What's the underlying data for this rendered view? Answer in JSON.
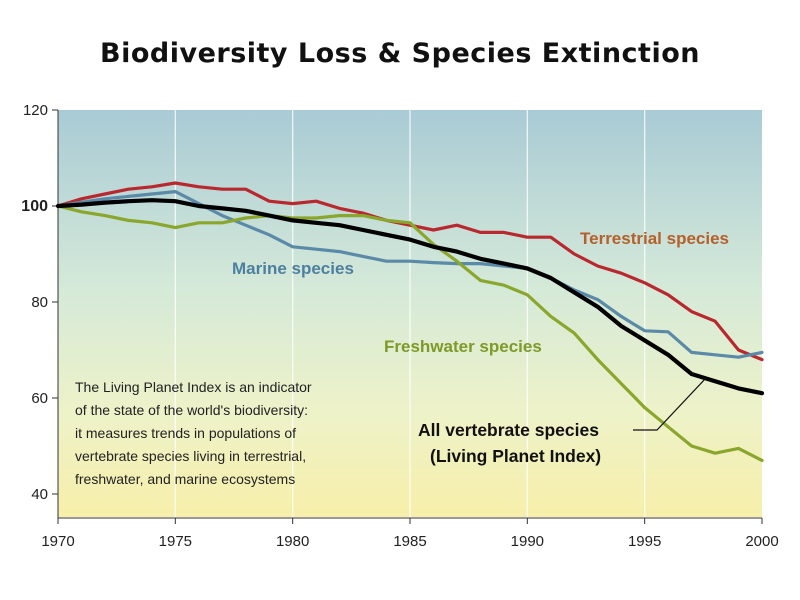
{
  "chart_data": {
    "type": "line",
    "title": "Biodiversity Loss & Species Extinction",
    "xlabel": "",
    "ylabel": "",
    "xlim": [
      1970,
      2000
    ],
    "ylim": [
      35,
      120
    ],
    "x_ticks": [
      "1970",
      "1975",
      "1980",
      "1985",
      "1990",
      "1995",
      "2000"
    ],
    "y_ticks": [
      "120",
      "100",
      "80",
      "60",
      "40"
    ],
    "grid": true,
    "series": [
      {
        "name": "Terrestrial species",
        "label": "Terrestrial species",
        "color": "#b8282e",
        "label_color": "#b5602a",
        "x": [
          1970,
          1971,
          1972,
          1973,
          1974,
          1975,
          1976,
          1977,
          1978,
          1979,
          1980,
          1981,
          1982,
          1983,
          1984,
          1985,
          1986,
          1987,
          1988,
          1989,
          1990,
          1991,
          1992,
          1993,
          1994,
          1995,
          1996,
          1997,
          1998,
          1999,
          2000
        ],
        "values": [
          100,
          101.5,
          102.5,
          103.5,
          104,
          104.8,
          104,
          103.5,
          103.5,
          101,
          100.5,
          101,
          99.5,
          98.5,
          97,
          96,
          95,
          96,
          94.5,
          94.5,
          93.5,
          93.5,
          90,
          87.5,
          86,
          84,
          81.5,
          78,
          76,
          70,
          68
        ]
      },
      {
        "name": "Marine species",
        "label": "Marine species",
        "color": "#5a8aa8",
        "label_color": "#4d7f9f",
        "x": [
          1970,
          1971,
          1972,
          1973,
          1974,
          1975,
          1976,
          1977,
          1978,
          1979,
          1980,
          1981,
          1982,
          1983,
          1984,
          1985,
          1986,
          1987,
          1988,
          1989,
          1990,
          1991,
          1992,
          1993,
          1994,
          1995,
          1996,
          1997,
          1998,
          1999,
          2000
        ],
        "values": [
          100,
          100.8,
          101.5,
          102,
          102.5,
          103,
          100.5,
          98,
          96,
          94,
          91.5,
          91,
          90.5,
          89.5,
          88.5,
          88.5,
          88.2,
          88,
          88,
          87.5,
          87,
          85,
          82.5,
          80.5,
          77,
          74,
          73.8,
          69.5,
          69,
          68.5,
          69.5
        ]
      },
      {
        "name": "Freshwater species",
        "label": "Freshwater species",
        "color": "#8aa62c",
        "label_color": "#7f9a28",
        "x": [
          1970,
          1971,
          1972,
          1973,
          1974,
          1975,
          1976,
          1977,
          1978,
          1979,
          1980,
          1981,
          1982,
          1983,
          1984,
          1985,
          1986,
          1987,
          1988,
          1989,
          1990,
          1991,
          1992,
          1993,
          1994,
          1995,
          1996,
          1997,
          1998,
          1999,
          2000
        ],
        "values": [
          100,
          98.8,
          98,
          97,
          96.5,
          95.5,
          96.5,
          96.5,
          97.5,
          98,
          97.5,
          97.5,
          98,
          98,
          97,
          96.5,
          92,
          88.5,
          84.5,
          83.5,
          81.5,
          77,
          73.5,
          68,
          63,
          58,
          54,
          50,
          48.5,
          49.5,
          47
        ]
      },
      {
        "name": "All vertebrate species (Living Planet Index)",
        "label_line1": "All vertebrate species",
        "label_line2": "(Living Planet Index)",
        "color": "#000000",
        "label_color": "#111111",
        "x": [
          1970,
          1971,
          1972,
          1973,
          1974,
          1975,
          1976,
          1977,
          1978,
          1979,
          1980,
          1981,
          1982,
          1983,
          1984,
          1985,
          1986,
          1987,
          1988,
          1989,
          1990,
          1991,
          1992,
          1993,
          1994,
          1995,
          1996,
          1997,
          1998,
          1999,
          2000
        ],
        "values": [
          100,
          100.3,
          100.7,
          101,
          101.2,
          101,
          100,
          99.5,
          99,
          98,
          97,
          96.5,
          96,
          95,
          94,
          93,
          91.5,
          90.5,
          89,
          88,
          87,
          85,
          82,
          79,
          75,
          72,
          69,
          65,
          63.5,
          62,
          61
        ]
      }
    ],
    "annotation": [
      "The Living Planet Index is an indicator",
      "of the state of the world's biodiversity:",
      "it measures trends in populations of",
      "vertebrate species living in terrestrial,",
      "freshwater, and marine ecosystems"
    ]
  }
}
